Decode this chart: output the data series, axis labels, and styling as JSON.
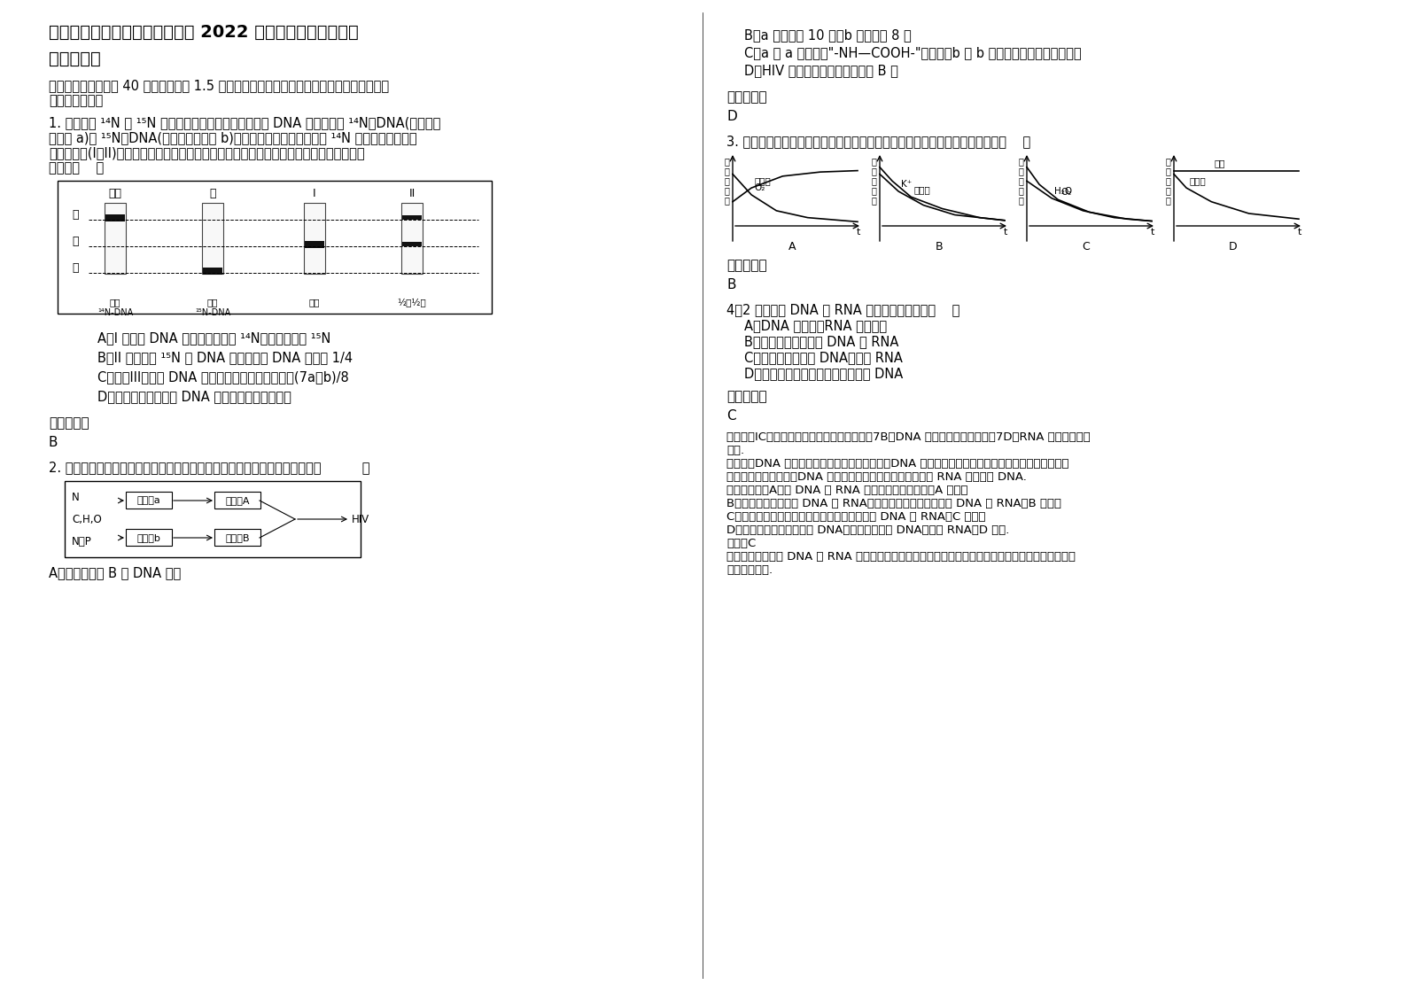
{
  "bg_color": "#ffffff",
  "title_line1": "河南省新乡市卫辉上乐村乡中学 2022 年高二生物下学期期末",
  "title_line2": "试卷含解析",
  "q1_answer": "B",
  "q2_answer": "D",
  "q3_answer": "B",
  "q4_answer": "C"
}
